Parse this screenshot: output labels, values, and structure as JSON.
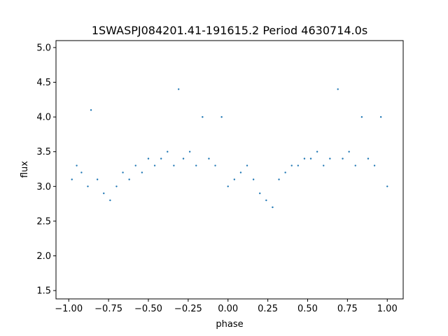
{
  "chart_data": {
    "type": "scatter",
    "title": "1SWASPJ084201.41-191615.2 Period 4630714.0s",
    "xlabel": "phase",
    "ylabel": "flux",
    "xlim": [
      -1.08,
      1.1
    ],
    "ylim": [
      1.38,
      5.1
    ],
    "x_ticks": [
      -1.0,
      -0.75,
      -0.5,
      -0.25,
      0.0,
      0.25,
      0.5,
      0.75,
      1.0
    ],
    "x_tick_labels": [
      "−1.00",
      "−0.75",
      "−0.50",
      "−0.25",
      "0.00",
      "0.25",
      "0.50",
      "0.75",
      "1.00"
    ],
    "y_ticks": [
      1.5,
      2.0,
      2.5,
      3.0,
      3.5,
      4.0,
      4.5,
      5.0
    ],
    "y_tick_labels": [
      "1.5",
      "2.0",
      "2.5",
      "3.0",
      "3.5",
      "4.0",
      "4.5",
      "5.0"
    ],
    "grid": false,
    "point_color": "#1f77b4",
    "series": [
      {
        "points": [
          [
            -0.98,
            3.1
          ],
          [
            -0.95,
            3.3
          ],
          [
            -0.92,
            3.2
          ],
          [
            -0.88,
            3.0
          ],
          [
            -0.86,
            4.1
          ],
          [
            -0.82,
            3.1
          ],
          [
            -0.78,
            2.9
          ],
          [
            -0.74,
            2.8
          ],
          [
            -0.7,
            3.0
          ],
          [
            -0.66,
            3.2
          ],
          [
            -0.62,
            3.1
          ],
          [
            -0.58,
            3.3
          ],
          [
            -0.54,
            3.2
          ],
          [
            -0.5,
            3.4
          ],
          [
            -0.46,
            3.3
          ],
          [
            -0.42,
            3.4
          ],
          [
            -0.38,
            3.5
          ],
          [
            -0.34,
            3.3
          ],
          [
            -0.31,
            4.4
          ],
          [
            -0.28,
            3.4
          ],
          [
            -0.24,
            3.5
          ],
          [
            -0.2,
            3.3
          ],
          [
            -0.16,
            4.0
          ],
          [
            -0.12,
            3.4
          ],
          [
            -0.08,
            3.3
          ],
          [
            -0.04,
            4.0
          ],
          [
            0.0,
            3.0
          ],
          [
            0.04,
            3.1
          ],
          [
            0.08,
            3.2
          ],
          [
            0.12,
            3.3
          ],
          [
            0.16,
            3.1
          ],
          [
            0.2,
            2.9
          ],
          [
            0.24,
            2.8
          ],
          [
            0.28,
            2.7
          ],
          [
            0.32,
            3.1
          ],
          [
            0.36,
            3.2
          ],
          [
            0.4,
            3.3
          ],
          [
            0.44,
            3.3
          ],
          [
            0.48,
            3.4
          ],
          [
            0.52,
            3.4
          ],
          [
            0.56,
            3.5
          ],
          [
            0.6,
            3.3
          ],
          [
            0.64,
            3.4
          ],
          [
            0.69,
            4.4
          ],
          [
            0.72,
            3.4
          ],
          [
            0.76,
            3.5
          ],
          [
            0.8,
            3.3
          ],
          [
            0.84,
            4.0
          ],
          [
            0.88,
            3.4
          ],
          [
            0.92,
            3.3
          ],
          [
            0.96,
            4.0
          ],
          [
            1.0,
            3.0
          ]
        ]
      }
    ]
  }
}
